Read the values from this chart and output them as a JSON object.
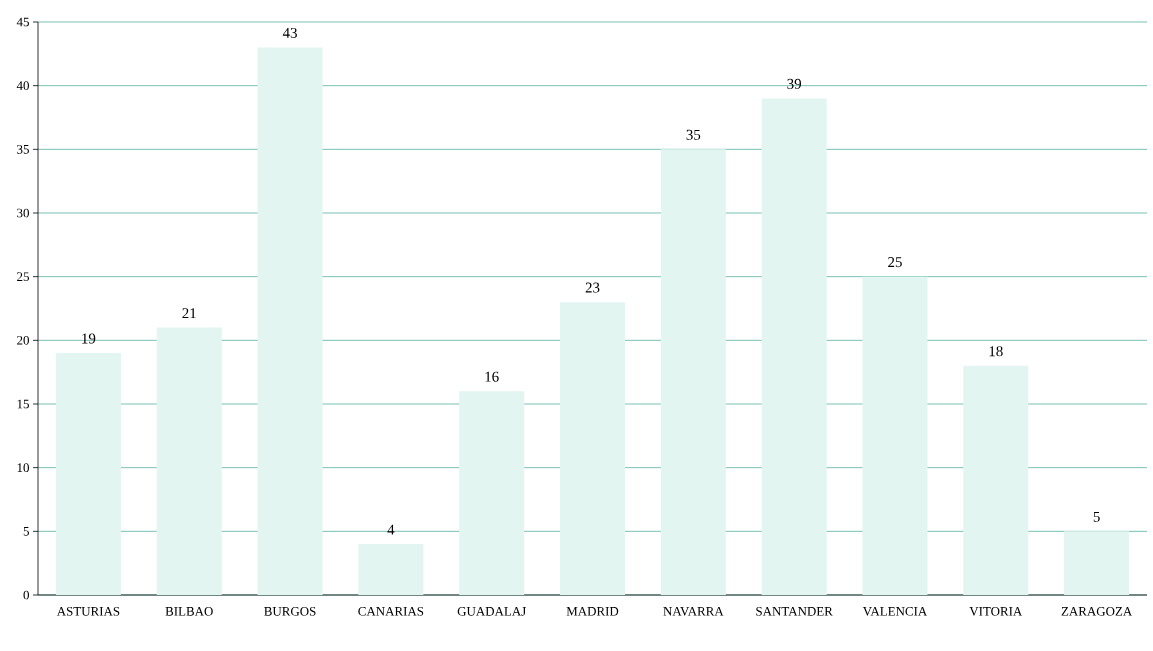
{
  "chart_data": {
    "type": "bar",
    "categories": [
      "ASTURIAS",
      "BILBAO",
      "BURGOS",
      "CANARIAS",
      "GUADALAJ",
      "MADRID",
      "NAVARRA",
      "SANTANDER",
      "VALENCIA",
      "VITORIA",
      "ZARAGOZA"
    ],
    "values": [
      19,
      21,
      43,
      4,
      16,
      23,
      35,
      39,
      25,
      18,
      5
    ],
    "color": "#e2f5f1",
    "ylim": [
      0,
      45
    ],
    "yticks": [
      0,
      5,
      10,
      15,
      20,
      25,
      30,
      35,
      40,
      45
    ],
    "grid": "y",
    "data_labels": true
  }
}
